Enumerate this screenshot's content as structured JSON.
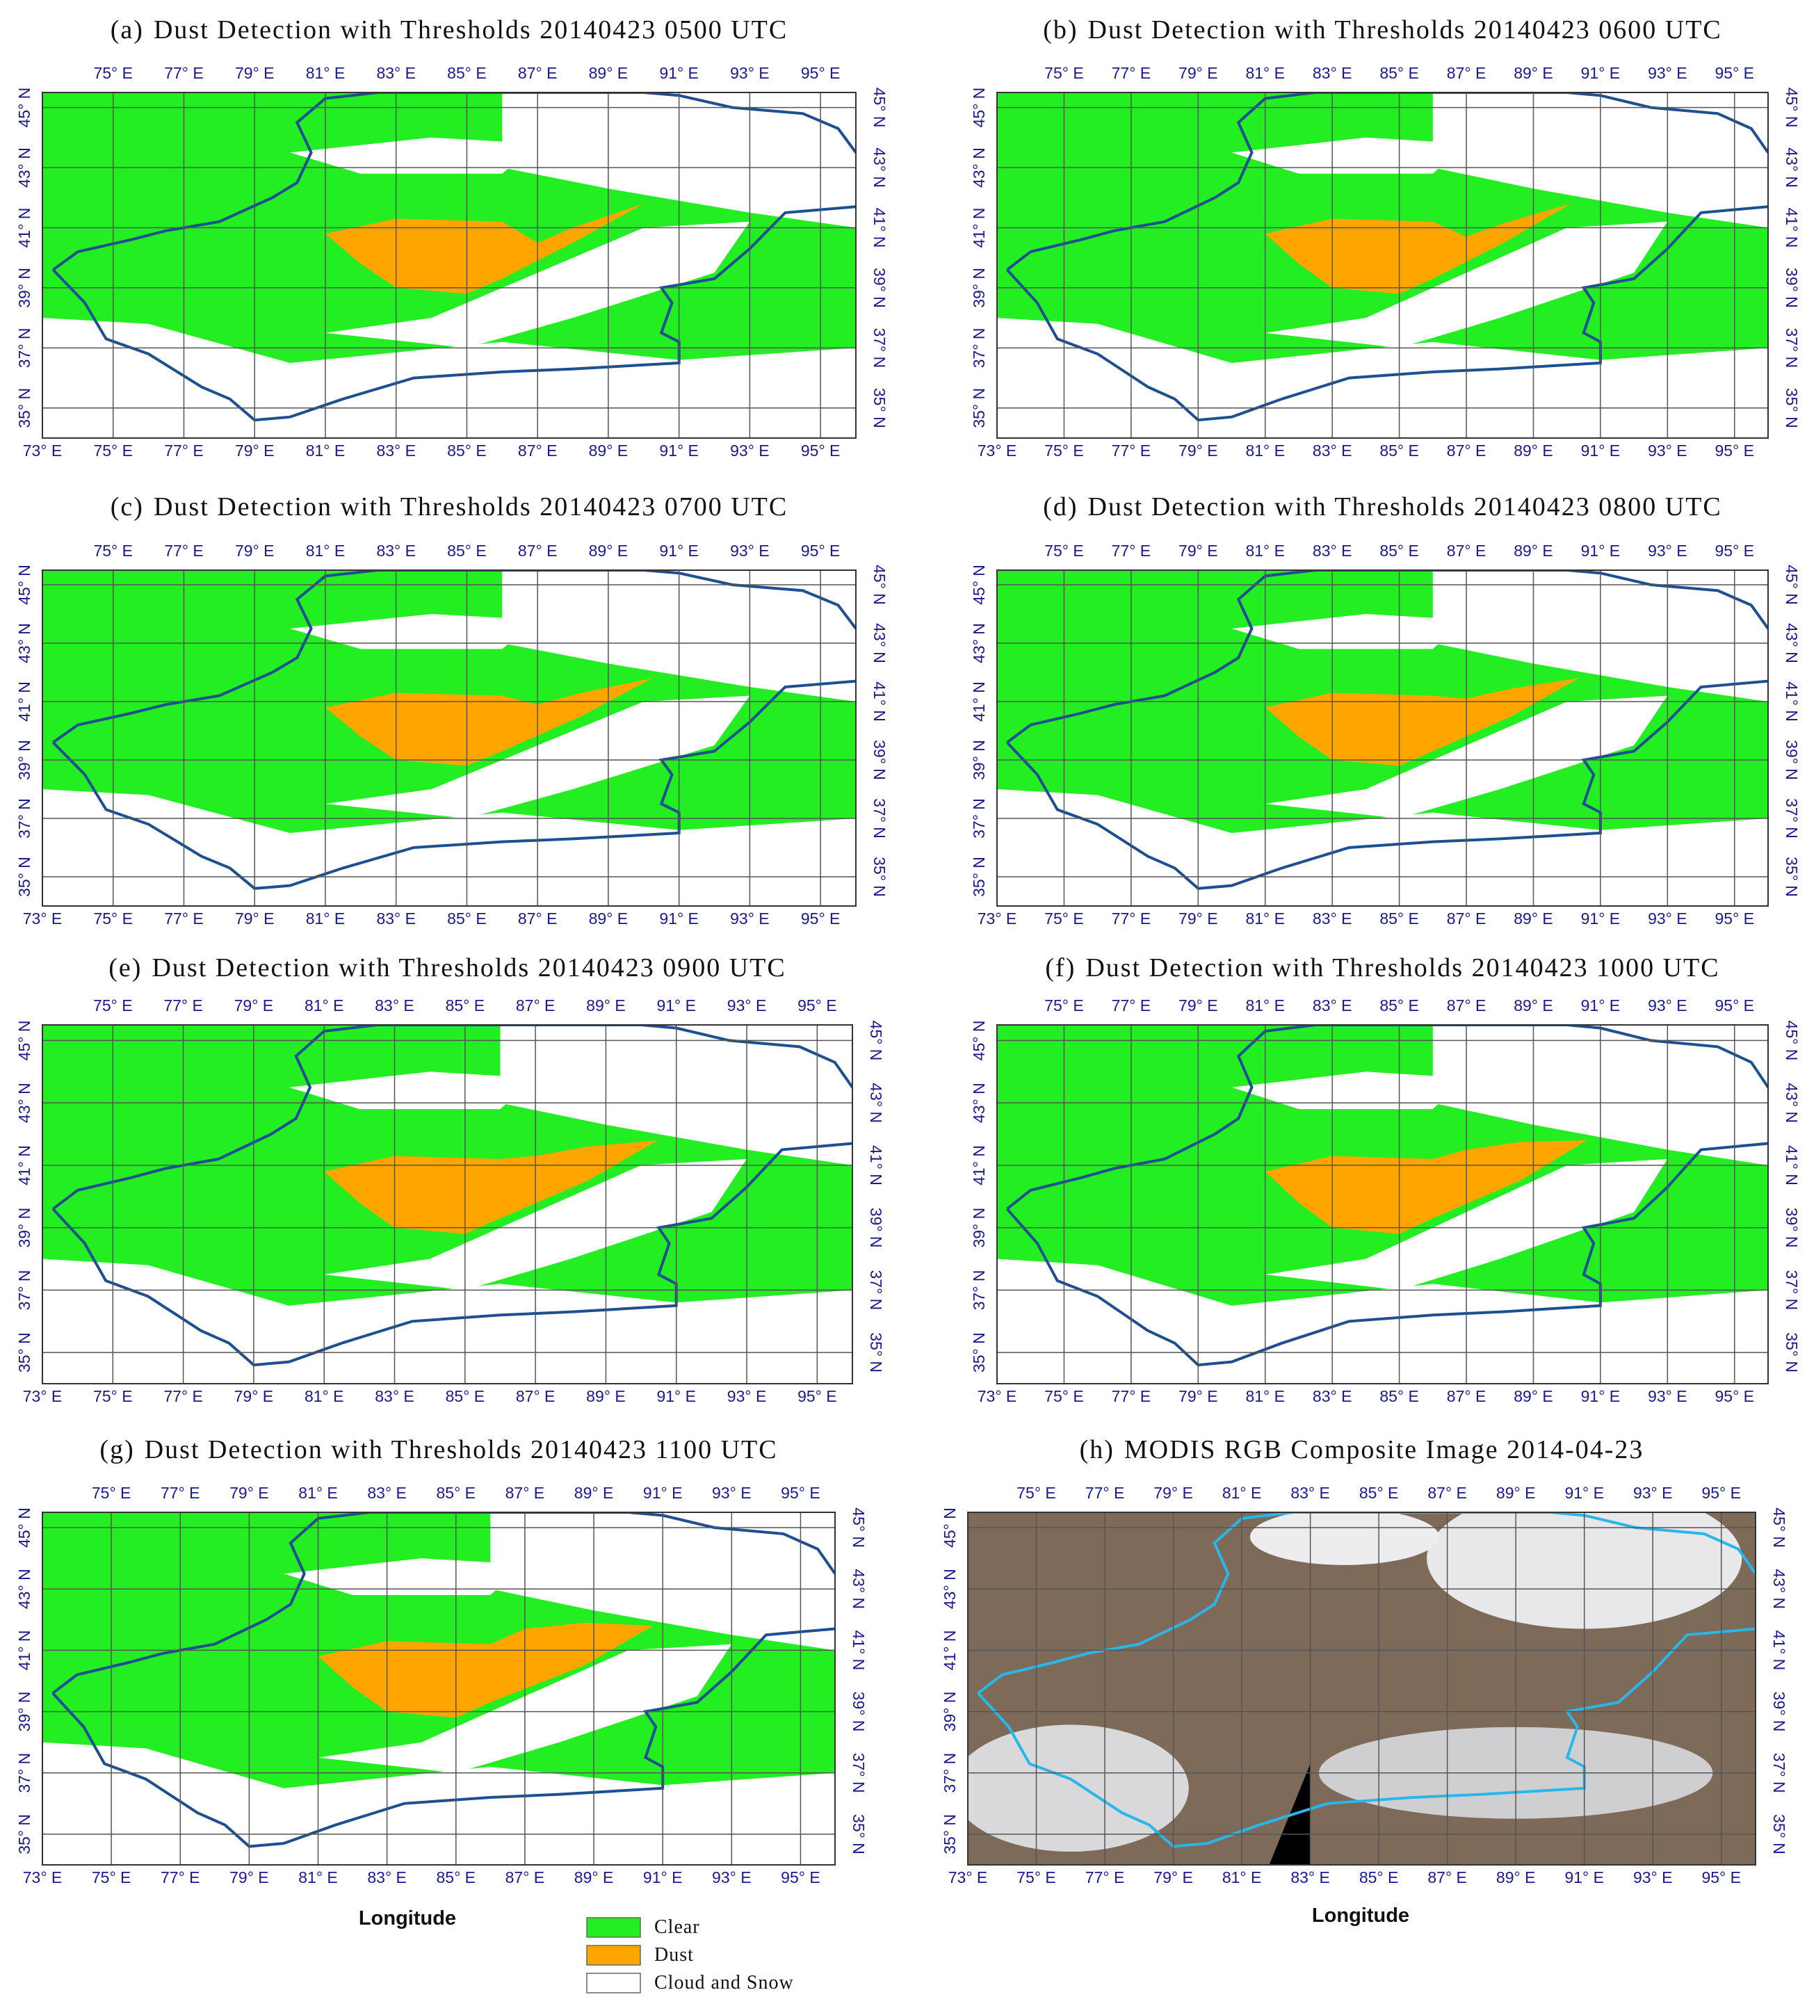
{
  "panels": [
    {
      "label": "(a)",
      "title": "Dust Detection with Thresholds 20140423 0500 UTC"
    },
    {
      "label": "(b)",
      "title": "Dust Detection with Thresholds 20140423 0600 UTC"
    },
    {
      "label": "(c)",
      "title": "Dust Detection with Thresholds 20140423 0700 UTC"
    },
    {
      "label": "(d)",
      "title": "Dust Detection with Thresholds 20140423 0800 UTC"
    },
    {
      "label": "(e)",
      "title": "Dust Detection with Thresholds 20140423 0900 UTC"
    },
    {
      "label": "(f)",
      "title": "Dust Detection with Thresholds 20140423 1000 UTC"
    },
    {
      "label": "(g)",
      "title": "Dust Detection with Thresholds 20140423 1100 UTC"
    },
    {
      "label": "(h)",
      "title": "MODIS RGB Composite Image 2014-04-23"
    }
  ],
  "lon_ticks": [
    "73° E",
    "75° E",
    "77° E",
    "79° E",
    "81° E",
    "83° E",
    "85° E",
    "87° E",
    "89° E",
    "91° E",
    "93° E",
    "95° E"
  ],
  "lat_ticks": [
    "35° N",
    "37° N",
    "39° N",
    "41° N",
    "43° N",
    "45° N"
  ],
  "axis_label": "Longitude",
  "legend": [
    {
      "label": "Clear",
      "color": "#22ee22"
    },
    {
      "label": "Dust",
      "color": "#ffa500"
    },
    {
      "label": "Cloud and Snow",
      "color": "#ffffff"
    }
  ]
}
